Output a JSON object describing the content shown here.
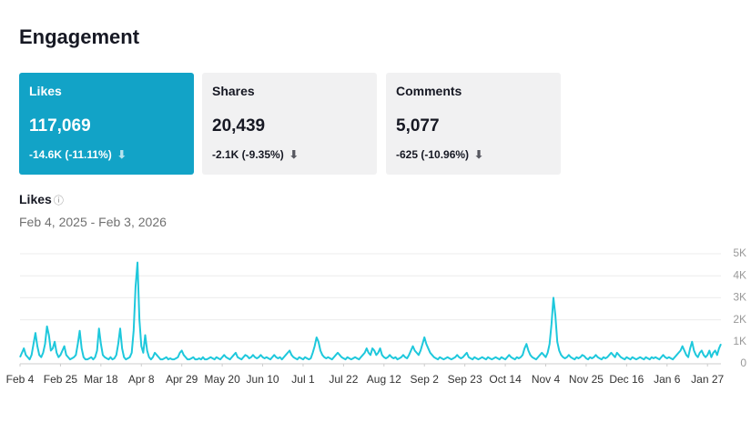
{
  "header": {
    "title": "Engagement"
  },
  "cards": [
    {
      "label": "Likes",
      "value": "117,069",
      "change": "-14.6K (-11.11%)"
    },
    {
      "label": "Shares",
      "value": "20,439",
      "change": "-2.1K (-9.35%)"
    },
    {
      "label": "Comments",
      "value": "5,077",
      "change": "-625 (-10.96%)"
    }
  ],
  "chart_data": {
    "type": "line",
    "title": "Likes",
    "subtitle": "Feb 4, 2025 - Feb 3, 2026",
    "color": "#1ec8dc",
    "grid": true,
    "xlim": [
      0,
      364
    ],
    "xticks": [
      {
        "value": 0,
        "label": "Feb 4"
      },
      {
        "value": 21,
        "label": "Feb 25"
      },
      {
        "value": 42,
        "label": "Mar 18"
      },
      {
        "value": 63,
        "label": "Apr 8"
      },
      {
        "value": 84,
        "label": "Apr 29"
      },
      {
        "value": 105,
        "label": "May 20"
      },
      {
        "value": 126,
        "label": "Jun 10"
      },
      {
        "value": 147,
        "label": "Jul 1"
      },
      {
        "value": 168,
        "label": "Jul 22"
      },
      {
        "value": 189,
        "label": "Aug 12"
      },
      {
        "value": 210,
        "label": "Sep 2"
      },
      {
        "value": 231,
        "label": "Sep 23"
      },
      {
        "value": 252,
        "label": "Oct 14"
      },
      {
        "value": 273,
        "label": "Nov 4"
      },
      {
        "value": 294,
        "label": "Nov 25"
      },
      {
        "value": 315,
        "label": "Dec 16"
      },
      {
        "value": 336,
        "label": "Jan 6"
      },
      {
        "value": 357,
        "label": "Jan 27"
      }
    ],
    "ylim": [
      0,
      5000
    ],
    "yticks": [
      0,
      {
        "value": 1000,
        "label": "1K"
      },
      {
        "value": 2000,
        "label": "2K"
      },
      {
        "value": 3000,
        "label": "3K"
      },
      {
        "value": 4000,
        "label": "4K"
      },
      {
        "value": 5000,
        "label": "5K"
      }
    ],
    "values": [
      300,
      500,
      700,
      400,
      300,
      200,
      400,
      900,
      1400,
      800,
      400,
      300,
      500,
      900,
      1700,
      1300,
      600,
      700,
      1000,
      500,
      300,
      400,
      600,
      800,
      400,
      300,
      200,
      250,
      300,
      400,
      900,
      1500,
      700,
      300,
      200,
      200,
      250,
      300,
      200,
      300,
      600,
      1600,
      900,
      400,
      300,
      250,
      200,
      300,
      200,
      250,
      400,
      900,
      1600,
      700,
      300,
      200,
      250,
      300,
      500,
      1500,
      3500,
      4600,
      2000,
      800,
      500,
      1300,
      600,
      300,
      200,
      300,
      500,
      400,
      300,
      200,
      200,
      250,
      300,
      200,
      250,
      200,
      200,
      250,
      300,
      500,
      600,
      400,
      300,
      200,
      200,
      250,
      300,
      200,
      200,
      250,
      200,
      300,
      200,
      200,
      250,
      300,
      250,
      200,
      300,
      250,
      200,
      300,
      400,
      300,
      250,
      200,
      300,
      400,
      500,
      300,
      250,
      200,
      300,
      400,
      350,
      250,
      300,
      400,
      300,
      250,
      300,
      400,
      300,
      250,
      300,
      250,
      200,
      300,
      400,
      300,
      250,
      300,
      200,
      300,
      400,
      500,
      600,
      400,
      300,
      250,
      200,
      300,
      250,
      200,
      300,
      250,
      200,
      250,
      500,
      800,
      1200,
      1000,
      600,
      400,
      300,
      250,
      300,
      250,
      200,
      300,
      400,
      500,
      400,
      300,
      250,
      200,
      300,
      250,
      200,
      250,
      300,
      250,
      200,
      300,
      400,
      500,
      700,
      500,
      400,
      700,
      600,
      400,
      500,
      700,
      400,
      300,
      250,
      300,
      400,
      300,
      250,
      300,
      200,
      250,
      300,
      400,
      300,
      250,
      400,
      600,
      800,
      600,
      500,
      400,
      600,
      900,
      1200,
      900,
      700,
      500,
      400,
      300,
      250,
      200,
      300,
      250,
      200,
      250,
      300,
      250,
      200,
      250,
      300,
      400,
      300,
      250,
      300,
      400,
      500,
      300,
      250,
      200,
      300,
      250,
      200,
      250,
      300,
      250,
      200,
      300,
      250,
      200,
      250,
      300,
      250,
      200,
      300,
      250,
      200,
      300,
      400,
      300,
      250,
      200,
      300,
      250,
      300,
      400,
      700,
      900,
      600,
      400,
      300,
      250,
      200,
      300,
      400,
      500,
      400,
      300,
      500,
      900,
      1800,
      3000,
      2200,
      1000,
      600,
      400,
      300,
      250,
      300,
      400,
      300,
      250,
      200,
      300,
      250,
      300,
      400,
      350,
      250,
      200,
      300,
      250,
      300,
      400,
      300,
      250,
      200,
      300,
      250,
      300,
      400,
      500,
      400,
      300,
      500,
      400,
      300,
      250,
      200,
      300,
      250,
      200,
      300,
      250,
      200,
      250,
      300,
      250,
      200,
      300,
      250,
      200,
      300,
      250,
      300,
      250,
      200,
      300,
      400,
      300,
      250,
      300,
      250,
      200,
      300,
      400,
      500,
      600,
      800,
      600,
      400,
      300,
      700,
      1000,
      600,
      400,
      300,
      500,
      600,
      400,
      300,
      400,
      600,
      300,
      500,
      600,
      400,
      700,
      900
    ]
  }
}
